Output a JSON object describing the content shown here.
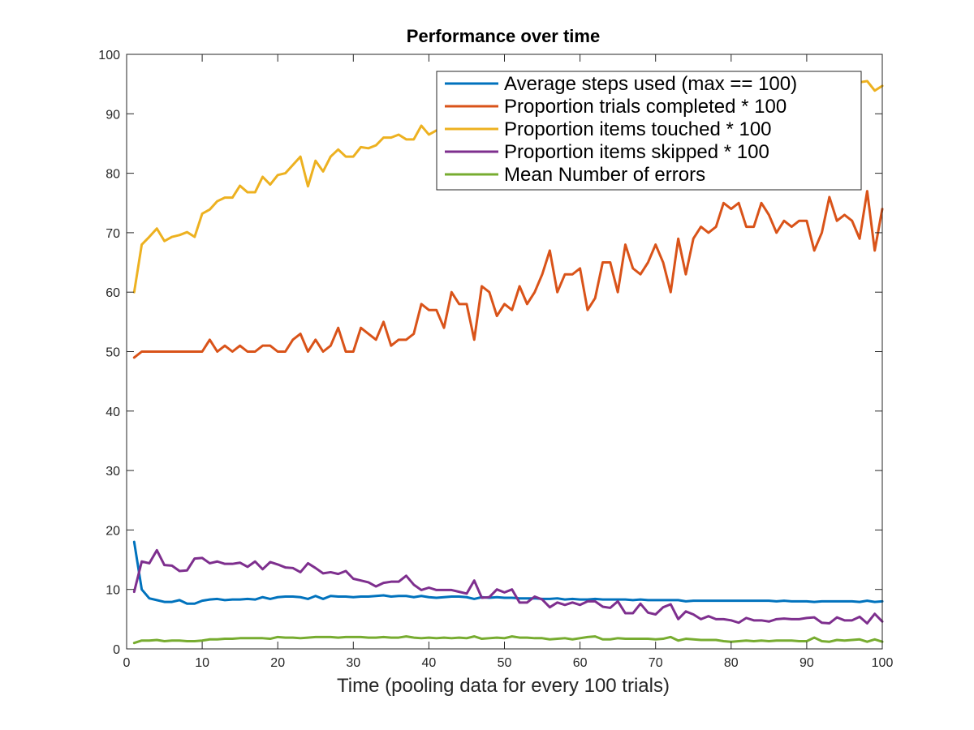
{
  "chart_data": {
    "type": "line",
    "title": "Performance over time",
    "xlabel": "Time (pooling data for every 100 trials)",
    "ylabel": "",
    "xlim": [
      0,
      100
    ],
    "ylim": [
      0,
      100
    ],
    "xticks": [
      0,
      10,
      20,
      30,
      40,
      50,
      60,
      70,
      80,
      90,
      100
    ],
    "yticks": [
      0,
      10,
      20,
      30,
      40,
      50,
      60,
      70,
      80,
      90,
      100
    ],
    "grid": false,
    "legend_position": "top-right",
    "x": [
      1,
      2,
      3,
      4,
      5,
      6,
      7,
      8,
      9,
      10,
      11,
      12,
      13,
      14,
      15,
      16,
      17,
      18,
      19,
      20,
      21,
      22,
      23,
      24,
      25,
      26,
      27,
      28,
      29,
      30,
      31,
      32,
      33,
      34,
      35,
      36,
      37,
      38,
      39,
      40,
      41,
      42,
      43,
      44,
      45,
      46,
      47,
      48,
      49,
      50,
      51,
      52,
      53,
      54,
      55,
      56,
      57,
      58,
      59,
      60,
      61,
      62,
      63,
      64,
      65,
      66,
      67,
      68,
      69,
      70,
      71,
      72,
      73,
      74,
      75,
      76,
      77,
      78,
      79,
      80,
      81,
      82,
      83,
      84,
      85,
      86,
      87,
      88,
      89,
      90,
      91,
      92,
      93,
      94,
      95,
      96,
      97,
      98,
      99,
      100
    ],
    "series": [
      {
        "name": "Average steps used (max == 100)",
        "color": "#0072BD",
        "values": [
          18,
          10,
          8.5,
          8.2,
          7.9,
          7.9,
          8.2,
          7.6,
          7.6,
          8.1,
          8.3,
          8.4,
          8.2,
          8.3,
          8.3,
          8.4,
          8.3,
          8.7,
          8.4,
          8.7,
          8.8,
          8.8,
          8.7,
          8.4,
          8.9,
          8.4,
          8.9,
          8.8,
          8.8,
          8.7,
          8.8,
          8.8,
          8.9,
          9.0,
          8.8,
          8.9,
          8.9,
          8.7,
          8.9,
          8.7,
          8.6,
          8.7,
          8.8,
          8.8,
          8.7,
          8.4,
          8.7,
          8.6,
          8.7,
          8.6,
          8.6,
          8.5,
          8.5,
          8.5,
          8.4,
          8.4,
          8.5,
          8.3,
          8.4,
          8.3,
          8.3,
          8.4,
          8.3,
          8.3,
          8.3,
          8.3,
          8.2,
          8.3,
          8.2,
          8.2,
          8.2,
          8.2,
          8.2,
          8.0,
          8.1,
          8.1,
          8.1,
          8.1,
          8.1,
          8.1,
          8.1,
          8.1,
          8.1,
          8.1,
          8.1,
          8.0,
          8.1,
          8.0,
          8.0,
          8.0,
          7.9,
          8.0,
          8.0,
          8.0,
          8.0,
          8.0,
          7.9,
          8.1,
          7.9,
          8.0
        ]
      },
      {
        "name": "Proportion trials completed * 100",
        "color": "#D95319",
        "values": [
          49,
          50,
          50,
          50,
          50,
          50,
          50,
          50,
          50,
          50,
          52,
          50,
          51,
          50,
          51,
          50,
          50,
          51,
          51,
          50,
          50,
          52,
          53,
          50,
          52,
          50,
          51,
          54,
          50,
          50,
          54,
          53,
          52,
          55,
          51,
          52,
          52,
          53,
          58,
          57,
          57,
          54,
          60,
          58,
          58,
          52,
          61,
          60,
          56,
          58,
          57,
          61,
          58,
          60,
          63,
          67,
          60,
          63,
          63,
          64,
          57,
          59,
          65,
          65,
          60,
          68,
          64,
          63,
          65,
          68,
          65,
          60,
          69,
          63,
          69,
          71,
          70,
          71,
          75,
          74,
          75,
          71,
          71,
          75,
          73,
          70,
          72,
          71,
          72,
          72,
          67,
          70,
          76,
          72,
          73,
          72,
          69,
          77,
          67,
          74
        ]
      },
      {
        "name": "Proportion items touched * 100",
        "color": "#EDB120",
        "values": [
          60,
          68,
          69.3,
          70.7,
          68.6,
          69.3,
          69.6,
          70.1,
          69.3,
          73.2,
          73.9,
          75.3,
          75.9,
          75.9,
          77.9,
          76.8,
          76.8,
          79.4,
          78.1,
          79.7,
          80.0,
          81.4,
          82.8,
          77.8,
          82.1,
          80.3,
          82.8,
          84.0,
          82.8,
          82.8,
          84.4,
          84.2,
          84.7,
          86.0,
          86.0,
          86.5,
          85.7,
          85.7,
          88.0,
          86.5,
          87.2,
          87.5,
          88.0,
          88.3,
          88.7,
          88.3,
          88.8,
          89.0,
          89.3,
          89.5,
          89.6,
          90.0,
          89.9,
          90.2,
          90.6,
          90.5,
          90.8,
          91.0,
          90.8,
          91.2,
          91.3,
          91.5,
          91.6,
          91.8,
          91.9,
          92.1,
          92.1,
          92.3,
          92.4,
          92.5,
          92.6,
          92.8,
          92.9,
          93.0,
          93.1,
          93.2,
          93.3,
          93.4,
          93.5,
          93.6,
          93.7,
          93.8,
          93.9,
          94.0,
          94.1,
          94.2,
          94.3,
          94.4,
          94.5,
          94.6,
          94.7,
          94.8,
          94.9,
          95.0,
          95.1,
          95.2,
          95.3,
          95.5,
          93.9,
          94.7
        ]
      },
      {
        "name": "Proportion items skipped * 100",
        "color": "#7E2F8E",
        "values": [
          9.6,
          14.7,
          14.4,
          16.6,
          14.1,
          14.0,
          13.1,
          13.2,
          15.2,
          15.3,
          14.4,
          14.7,
          14.3,
          14.3,
          14.5,
          13.8,
          14.7,
          13.4,
          14.6,
          14.2,
          13.7,
          13.6,
          12.9,
          14.4,
          13.6,
          12.7,
          12.9,
          12.6,
          13.1,
          11.8,
          11.5,
          11.2,
          10.5,
          11.1,
          11.3,
          11.3,
          12.3,
          10.8,
          9.9,
          10.3,
          9.9,
          9.9,
          9.9,
          9.6,
          9.3,
          11.5,
          8.6,
          8.7,
          10.0,
          9.5,
          10.0,
          7.8,
          7.8,
          8.8,
          8.3,
          7.0,
          7.8,
          7.4,
          7.8,
          7.4,
          8.0,
          8.0,
          7.1,
          6.9,
          8.0,
          6.0,
          6.0,
          7.6,
          6.1,
          5.8,
          7.0,
          7.5,
          5.0,
          6.3,
          5.8,
          5.0,
          5.5,
          5.0,
          5.0,
          4.8,
          4.4,
          5.2,
          4.8,
          4.8,
          4.6,
          5.0,
          5.1,
          5.0,
          5.0,
          5.2,
          5.3,
          4.4,
          4.3,
          5.3,
          4.8,
          4.8,
          5.4,
          4.3,
          5.9,
          4.6
        ]
      },
      {
        "name": "Mean Number of errors",
        "color": "#77AC30",
        "values": [
          1.0,
          1.4,
          1.4,
          1.5,
          1.3,
          1.4,
          1.4,
          1.3,
          1.3,
          1.4,
          1.6,
          1.6,
          1.7,
          1.7,
          1.8,
          1.8,
          1.8,
          1.8,
          1.7,
          2.0,
          1.9,
          1.9,
          1.8,
          1.9,
          2.0,
          2.0,
          2.0,
          1.9,
          2.0,
          2.0,
          2.0,
          1.9,
          1.9,
          2.0,
          1.9,
          1.9,
          2.1,
          1.9,
          1.8,
          1.9,
          1.8,
          1.9,
          1.8,
          1.9,
          1.8,
          2.1,
          1.7,
          1.8,
          1.9,
          1.8,
          2.1,
          1.9,
          1.9,
          1.8,
          1.8,
          1.6,
          1.7,
          1.8,
          1.6,
          1.8,
          2.0,
          2.1,
          1.6,
          1.6,
          1.8,
          1.7,
          1.7,
          1.7,
          1.7,
          1.6,
          1.7,
          2.0,
          1.4,
          1.7,
          1.6,
          1.5,
          1.5,
          1.5,
          1.3,
          1.2,
          1.3,
          1.4,
          1.3,
          1.4,
          1.3,
          1.4,
          1.4,
          1.4,
          1.3,
          1.3,
          1.9,
          1.3,
          1.2,
          1.5,
          1.4,
          1.5,
          1.6,
          1.2,
          1.6,
          1.2
        ]
      }
    ]
  }
}
